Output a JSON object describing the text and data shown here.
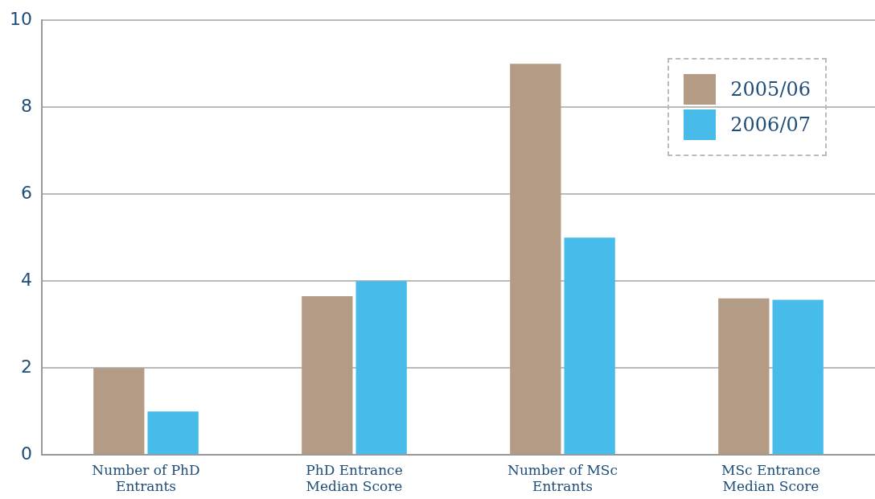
{
  "chart_data": {
    "type": "bar",
    "categories": [
      "Number of PhD Entrants",
      "PhD Entrance Median Score",
      "Number of MSc Entrants",
      "MSc Entrance Median Score"
    ],
    "series": [
      {
        "name": "2005/06",
        "color": "#b39b85",
        "values": [
          2,
          3.65,
          9,
          3.6
        ]
      },
      {
        "name": "2006/07",
        "color": "#47bbea",
        "values": [
          1,
          4,
          5,
          3.57
        ]
      }
    ],
    "ylim": [
      0,
      10
    ],
    "yticks": [
      0,
      2,
      4,
      6,
      8,
      10
    ],
    "grid": "y",
    "legend": "top right"
  }
}
